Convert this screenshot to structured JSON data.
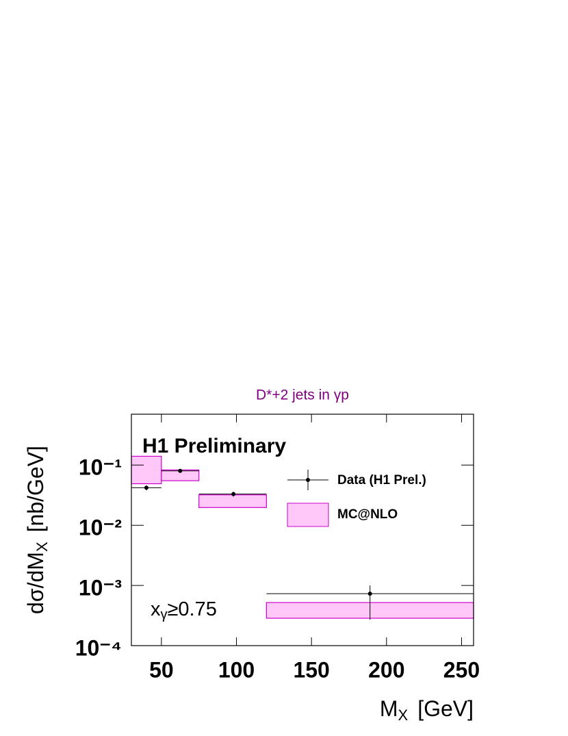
{
  "chart_data": {
    "type": "band",
    "title": "D*+2 jets in γp",
    "ylabel": {
      "main": "dσ/dM",
      "sub": "X",
      "unit": "[nb/GeV]"
    },
    "xlabel": {
      "main": "M",
      "sub": "X",
      "unit": "[GeV]"
    },
    "annotations": {
      "experiment": "H1 Preliminary",
      "cut": {
        "main": "x",
        "sub": "γ",
        "rest": "≥0.75"
      }
    },
    "bins": [
      30,
      50,
      75,
      120,
      258
    ],
    "xlim": [
      30,
      258
    ],
    "xticks": [
      50,
      100,
      150,
      200,
      250
    ],
    "ylim": [
      0.0001,
      0.7
    ],
    "ylog": true,
    "yticks": [
      {
        "value": 0.0001,
        "label": "10⁻⁴"
      },
      {
        "value": 0.001,
        "label": "10⁻³"
      },
      {
        "value": 0.01,
        "label": "10⁻²"
      },
      {
        "value": 0.1,
        "label": "10⁻¹"
      }
    ],
    "legend": "upper-right",
    "series": [
      {
        "name": "Data (H1 Prel.)",
        "color": "#000000",
        "x": [
          40,
          62.5,
          98,
          189
        ],
        "values": [
          0.042,
          0.08,
          0.033,
          0.00073
        ],
        "err_low": [
          0.004,
          0.004,
          0.003,
          0.00046
        ],
        "err_high": [
          0.004,
          0.004,
          0.003,
          0.00027
        ]
      },
      {
        "name": "MC@NLO",
        "color": "#cc00cc",
        "fill": "#ffc8f8",
        "low": [
          0.049,
          0.055,
          0.0197,
          0.000285
        ],
        "high": [
          0.14,
          0.083,
          0.032,
          0.00052
        ]
      }
    ]
  }
}
